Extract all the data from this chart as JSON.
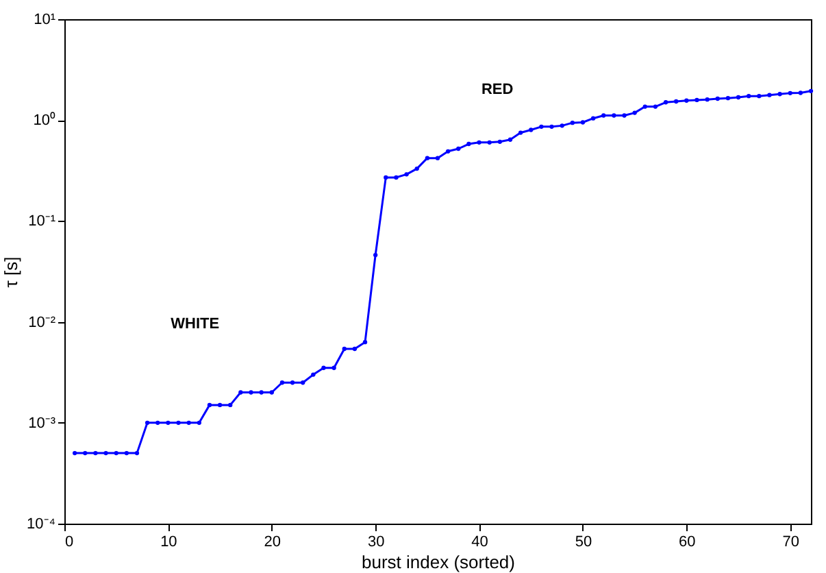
{
  "chart_data": {
    "type": "line",
    "xlabel": "burst index (sorted)",
    "ylabel": "τ [s]",
    "x": [
      1,
      2,
      3,
      4,
      5,
      6,
      7,
      8,
      9,
      10,
      11,
      12,
      13,
      14,
      15,
      16,
      17,
      18,
      19,
      20,
      21,
      22,
      23,
      24,
      25,
      26,
      27,
      28,
      29,
      30,
      31,
      32,
      33,
      34,
      35,
      36,
      37,
      38,
      39,
      40,
      41,
      42,
      43,
      44,
      45,
      46,
      47,
      48,
      49,
      50,
      51,
      52,
      53,
      54,
      55,
      56,
      57,
      58,
      59,
      60,
      61,
      62,
      63,
      64,
      65,
      66,
      67,
      68,
      69,
      70,
      71,
      72
    ],
    "series": [
      {
        "color": "#0000ff",
        "values": [
          0.0005,
          0.0005,
          0.0005,
          0.0005,
          0.0005,
          0.0005,
          0.0005,
          0.001,
          0.001,
          0.001,
          0.001,
          0.001,
          0.001,
          0.0015,
          0.0015,
          0.0015,
          0.002,
          0.002,
          0.002,
          0.002,
          0.0025,
          0.0025,
          0.0025,
          0.003,
          0.0035,
          0.0035,
          0.0054,
          0.0054,
          0.0063,
          0.046,
          0.27,
          0.27,
          0.29,
          0.33,
          0.42,
          0.42,
          0.49,
          0.52,
          0.58,
          0.6,
          0.6,
          0.61,
          0.64,
          0.75,
          0.8,
          0.86,
          0.86,
          0.88,
          0.94,
          0.95,
          1.04,
          1.11,
          1.11,
          1.11,
          1.18,
          1.36,
          1.36,
          1.5,
          1.53,
          1.56,
          1.58,
          1.6,
          1.63,
          1.65,
          1.68,
          1.73,
          1.73,
          1.77,
          1.81,
          1.85,
          1.86,
          1.94
        ]
      }
    ],
    "xlim": [
      0,
      72
    ],
    "xticks": [
      0,
      10,
      20,
      30,
      40,
      50,
      60,
      70
    ],
    "ylim": [
      0.0001,
      10
    ],
    "log": true,
    "yticks": [
      {
        "value": 0.0001,
        "label": "10⁻⁴"
      },
      {
        "value": 0.001,
        "label": "10⁻³"
      },
      {
        "value": 0.01,
        "label": "10⁻²"
      },
      {
        "value": 0.1,
        "label": "10⁻¹"
      },
      {
        "value": 1,
        "label": "10⁰"
      },
      {
        "value": 10,
        "label": "10¹"
      }
    ],
    "annotations": [
      "WHITE",
      "RED"
    ],
    "marker": "circle",
    "line_style": "solid",
    "grid": false
  }
}
